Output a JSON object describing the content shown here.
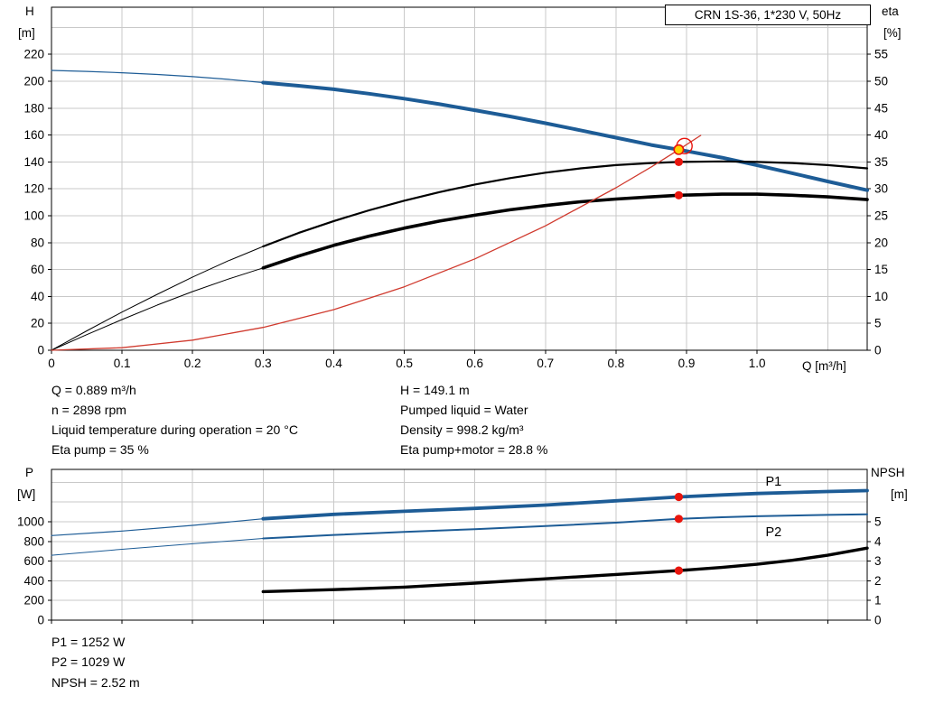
{
  "header": {
    "title": "CRN 1S-36, 1*230 V, 50Hz"
  },
  "colors": {
    "blue": "#1d5c96",
    "black": "#000000",
    "red": "#d03a2e",
    "marker_red": "#e8150d",
    "yellow": "#ffd300",
    "grid": "#c9c9c9",
    "axis": "#000000"
  },
  "annotations": {
    "left": [
      "Q = 0.889 m³/h",
      "n = 2898 rpm",
      "Liquid temperature during operation = 20 °C",
      "Eta pump = 35 %"
    ],
    "right": [
      "H = 149.1 m",
      "Pumped liquid = Water",
      "Density = 998.2 kg/m³",
      "Eta pump+motor = 28.8 %"
    ],
    "bottom": [
      "P1 = 1252 W",
      "P2 = 1029 W",
      "NPSH = 2.52 m"
    ]
  },
  "chart_data": [
    {
      "id": "top",
      "type": "line",
      "title": "CRN 1S-36, 1*230 V, 50Hz",
      "x_axis": {
        "label": "Q [m³/h]",
        "min": 0,
        "max": 1.156,
        "grid_step": 0.1,
        "grid_max": 1.1,
        "show_labels": true,
        "ticks": [
          "0",
          "0.1",
          "0.2",
          "0.3",
          "0.4",
          "0.5",
          "0.6",
          "0.7",
          "0.8",
          "0.9",
          "1.0"
        ]
      },
      "y_left": {
        "label": "H",
        "unit": "[m]",
        "min": 0,
        "max": 255,
        "grid_step": 20,
        "grid_max": 240,
        "ticks": [
          0,
          20,
          40,
          60,
          80,
          100,
          120,
          140,
          160,
          180,
          200,
          220
        ]
      },
      "y_right": {
        "label": "eta",
        "unit": "[%]",
        "scale": 4,
        "ticks": [
          0,
          5,
          10,
          15,
          20,
          25,
          30,
          35,
          40,
          45,
          50,
          55
        ]
      },
      "series": [
        {
          "name": "head-curve-lead",
          "axis": "left",
          "color": "blue",
          "width": 1.2,
          "points": [
            [
              0,
              208
            ],
            [
              0.05,
              207.3
            ],
            [
              0.1,
              206.3
            ],
            [
              0.15,
              205
            ],
            [
              0.2,
              203.4
            ],
            [
              0.25,
              201.4
            ],
            [
              0.3,
              199
            ]
          ]
        },
        {
          "name": "head-curve",
          "axis": "left",
          "color": "blue",
          "width": 4,
          "points": [
            [
              0.3,
              199
            ],
            [
              0.35,
              196.6
            ],
            [
              0.4,
              194
            ],
            [
              0.45,
              190.7
            ],
            [
              0.5,
              187
            ],
            [
              0.55,
              182.9
            ],
            [
              0.6,
              178.4
            ],
            [
              0.65,
              173.8
            ],
            [
              0.7,
              168.8
            ],
            [
              0.75,
              163.5
            ],
            [
              0.8,
              158
            ],
            [
              0.85,
              152.6
            ],
            [
              0.889,
              149.1
            ],
            [
              0.95,
              143.2
            ],
            [
              1.0,
              137.5
            ],
            [
              1.05,
              131.6
            ],
            [
              1.1,
              125.5
            ],
            [
              1.156,
              119
            ]
          ]
        },
        {
          "name": "eta-pump-curve-lead",
          "axis": "right",
          "color": "black",
          "width": 1,
          "points": [
            [
              0,
              0
            ],
            [
              0.05,
              3.6
            ],
            [
              0.1,
              7.1
            ],
            [
              0.15,
              10.4
            ],
            [
              0.2,
              13.6
            ],
            [
              0.25,
              16.6
            ],
            [
              0.3,
              19.3
            ]
          ]
        },
        {
          "name": "eta-pump-curve",
          "axis": "right",
          "color": "black",
          "width": 2.2,
          "points": [
            [
              0.3,
              19.3
            ],
            [
              0.35,
              21.8
            ],
            [
              0.4,
              24
            ],
            [
              0.45,
              26
            ],
            [
              0.5,
              27.8
            ],
            [
              0.55,
              29.4
            ],
            [
              0.6,
              30.8
            ],
            [
              0.65,
              32
            ],
            [
              0.7,
              33
            ],
            [
              0.75,
              33.8
            ],
            [
              0.8,
              34.4
            ],
            [
              0.85,
              34.8
            ],
            [
              0.889,
              35
            ],
            [
              0.95,
              35.1
            ],
            [
              1.0,
              35
            ],
            [
              1.05,
              34.8
            ],
            [
              1.1,
              34.4
            ],
            [
              1.156,
              33.8
            ]
          ]
        },
        {
          "name": "eta-pump-motor-curve-lead",
          "axis": "right",
          "color": "black",
          "width": 1,
          "points": [
            [
              0,
              0
            ],
            [
              0.05,
              2.9
            ],
            [
              0.1,
              5.7
            ],
            [
              0.15,
              8.4
            ],
            [
              0.2,
              10.9
            ],
            [
              0.25,
              13.2
            ],
            [
              0.3,
              15.3
            ]
          ]
        },
        {
          "name": "eta-pump-motor-curve",
          "axis": "right",
          "color": "black",
          "width": 3.6,
          "points": [
            [
              0.3,
              15.3
            ],
            [
              0.35,
              17.5
            ],
            [
              0.4,
              19.5
            ],
            [
              0.45,
              21.2
            ],
            [
              0.5,
              22.7
            ],
            [
              0.55,
              24
            ],
            [
              0.6,
              25.1
            ],
            [
              0.65,
              26.1
            ],
            [
              0.7,
              26.9
            ],
            [
              0.75,
              27.6
            ],
            [
              0.8,
              28.1
            ],
            [
              0.85,
              28.5
            ],
            [
              0.889,
              28.8
            ],
            [
              0.95,
              29
            ],
            [
              1.0,
              29
            ],
            [
              1.05,
              28.8
            ],
            [
              1.1,
              28.5
            ],
            [
              1.156,
              28
            ]
          ]
        },
        {
          "name": "system-curve",
          "axis": "left",
          "color": "red",
          "width": 1.3,
          "points": [
            [
              0,
              0
            ],
            [
              0.1,
              1.9
            ],
            [
              0.2,
              7.5
            ],
            [
              0.3,
              17
            ],
            [
              0.4,
              30.2
            ],
            [
              0.5,
              47.2
            ],
            [
              0.6,
              67.9
            ],
            [
              0.7,
              92.5
            ],
            [
              0.8,
              120.8
            ],
            [
              0.85,
              136.3
            ],
            [
              0.889,
              149.1
            ],
            [
              0.92,
              159.7
            ]
          ]
        }
      ],
      "markers": [
        {
          "name": "duty-point-ring",
          "q": 0.897,
          "value": 151.8,
          "axis": "left",
          "r": 8.5,
          "fill": "none",
          "stroke": "marker_red",
          "sw": 1.4
        },
        {
          "name": "duty-point",
          "q": 0.889,
          "value": 149.1,
          "axis": "left",
          "r": 5.2,
          "fill": "yellow",
          "stroke": "marker_red",
          "sw": 1.6
        },
        {
          "name": "eta-pump-point",
          "q": 0.889,
          "value": 35,
          "axis": "right",
          "r": 4.6,
          "fill": "marker_red"
        },
        {
          "name": "eta-pump-motor-point",
          "q": 0.889,
          "value": 28.8,
          "axis": "right",
          "r": 4.6,
          "fill": "marker_red"
        }
      ]
    },
    {
      "id": "bottom",
      "type": "line",
      "title": "",
      "x_axis": {
        "label": "",
        "min": 0,
        "max": 1.156,
        "grid_step": 0.1,
        "grid_max": 1.1,
        "show_labels": false,
        "ticks": [
          "0",
          "0.1",
          "0.2",
          "0.3",
          "0.4",
          "0.5",
          "0.6",
          "0.7",
          "0.8",
          "0.9",
          "1.0",
          "1.1"
        ]
      },
      "y_left": {
        "label": "P",
        "unit": "[W]",
        "min": 0,
        "max": 1532,
        "grid_step": 200,
        "grid_max": 1400,
        "ticks": [
          0,
          200,
          400,
          600,
          800,
          1000
        ]
      },
      "y_right": {
        "label": "NPSH",
        "unit": "[m]",
        "scale": 200,
        "ticks": [
          0,
          1,
          2,
          3,
          4,
          5
        ]
      },
      "series": [
        {
          "name": "p1-curve-lead",
          "axis": "left",
          "color": "blue",
          "width": 1.2,
          "points": [
            [
              0,
              860
            ],
            [
              0.1,
              905
            ],
            [
              0.2,
              963
            ],
            [
              0.3,
              1030
            ]
          ]
        },
        {
          "name": "p1-curve",
          "axis": "left",
          "color": "blue",
          "width": 3.8,
          "points": [
            [
              0.3,
              1030
            ],
            [
              0.4,
              1075
            ],
            [
              0.5,
              1106
            ],
            [
              0.6,
              1136
            ],
            [
              0.7,
              1170
            ],
            [
              0.8,
              1213
            ],
            [
              0.889,
              1252
            ],
            [
              0.95,
              1272
            ],
            [
              1.0,
              1287
            ],
            [
              1.1,
              1307
            ],
            [
              1.156,
              1316
            ]
          ]
        },
        {
          "name": "p2-curve-lead",
          "axis": "left",
          "color": "blue",
          "width": 1,
          "points": [
            [
              0,
              660
            ],
            [
              0.1,
              720
            ],
            [
              0.2,
              776
            ],
            [
              0.3,
              830
            ]
          ]
        },
        {
          "name": "p2-curve",
          "axis": "left",
          "color": "blue",
          "width": 2,
          "points": [
            [
              0.3,
              830
            ],
            [
              0.4,
              866
            ],
            [
              0.5,
              896
            ],
            [
              0.6,
              925
            ],
            [
              0.7,
              956
            ],
            [
              0.8,
              991
            ],
            [
              0.889,
              1029
            ],
            [
              0.95,
              1046
            ],
            [
              1.0,
              1056
            ],
            [
              1.1,
              1070
            ],
            [
              1.156,
              1076
            ]
          ]
        },
        {
          "name": "npsh-curve",
          "axis": "right",
          "color": "black",
          "width": 3.4,
          "points": [
            [
              0.3,
              1.45
            ],
            [
              0.4,
              1.55
            ],
            [
              0.5,
              1.68
            ],
            [
              0.6,
              1.88
            ],
            [
              0.7,
              2.1
            ],
            [
              0.8,
              2.32
            ],
            [
              0.889,
              2.52
            ],
            [
              0.95,
              2.68
            ],
            [
              1.0,
              2.84
            ],
            [
              1.05,
              3.04
            ],
            [
              1.1,
              3.3
            ],
            [
              1.156,
              3.66
            ]
          ]
        }
      ],
      "labels": [
        {
          "text": "P1",
          "q": 1.012,
          "value": 1368,
          "color": "blue"
        },
        {
          "text": "P2",
          "q": 1.012,
          "value": 852,
          "color": "blue"
        }
      ],
      "markers": [
        {
          "name": "p1-point",
          "q": 0.889,
          "value": 1252,
          "axis": "left",
          "r": 4.6,
          "fill": "marker_red"
        },
        {
          "name": "p2-point",
          "q": 0.889,
          "value": 1029,
          "axis": "left",
          "r": 4.6,
          "fill": "marker_red"
        },
        {
          "name": "npsh-point",
          "q": 0.889,
          "value": 2.52,
          "axis": "right",
          "r": 4.6,
          "fill": "marker_red"
        }
      ]
    }
  ]
}
